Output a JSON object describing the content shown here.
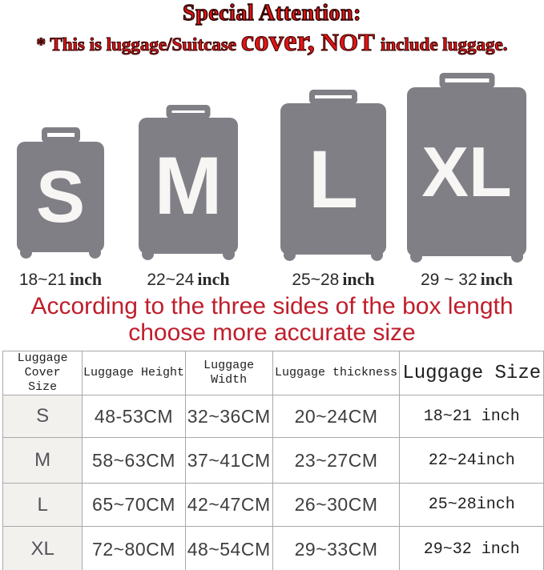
{
  "header": {
    "title": "Special Attention:",
    "note_prefix": "* This is luggage/Suitcase ",
    "note_cover": "cover,",
    "note_not": " NOT ",
    "note_suffix": "include luggage."
  },
  "sizes": [
    {
      "letter": "S",
      "range": "18~21",
      "unit": "inch"
    },
    {
      "letter": "M",
      "range": "22~24",
      "unit": "inch"
    },
    {
      "letter": "L",
      "range": "25~28",
      "unit": "inch"
    },
    {
      "letter": "XL",
      "range": "29 ~ 32",
      "unit": "inch"
    }
  ],
  "instruction": {
    "line1": "According to the three sides of the box length",
    "line2": "choose more accurate size"
  },
  "table": {
    "cover_size_header": {
      "line1": "Luggage Cover",
      "line2": "Size"
    },
    "headers": [
      "Luggage Height",
      "Luggage Width",
      "Luggage thickness",
      "Luggage Size"
    ],
    "rows": [
      {
        "size": "S",
        "height": "48-53CM",
        "width": "32~36CM",
        "thickness": "20~24CM",
        "inch": "18~21 inch"
      },
      {
        "size": "M",
        "height": "58~63CM",
        "width": "37~41CM",
        "thickness": "23~27CM",
        "inch": "22~24inch"
      },
      {
        "size": "L",
        "height": "65~70CM",
        "width": "42~47CM",
        "thickness": "26~30CM",
        "inch": "25~28inch"
      },
      {
        "size": "XL",
        "height": "72~80CM",
        "width": "48~54CM",
        "thickness": "29~33CM",
        "inch": "29~32 inch"
      }
    ]
  },
  "colors": {
    "attention_red": "#e41414",
    "instruction_red": "#bf1e2c",
    "suitcase_gray": "#817f86",
    "first_column_bg": "#f2f1ee"
  }
}
